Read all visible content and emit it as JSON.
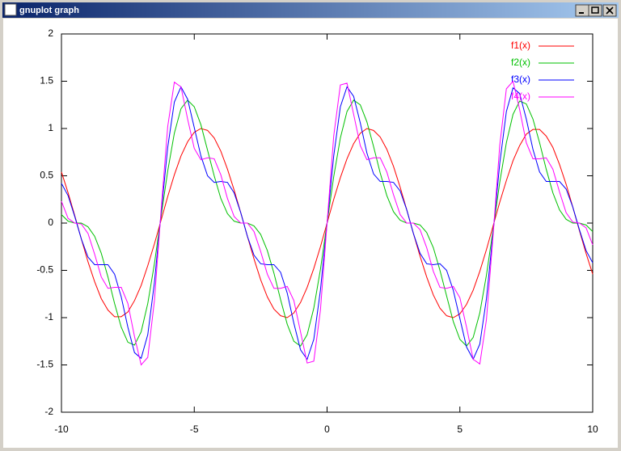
{
  "window": {
    "title": "gnuplot graph"
  },
  "chart_data": {
    "type": "line",
    "x": [
      -10,
      -9.75,
      -9.5,
      -9.25,
      -9,
      -8.75,
      -8.5,
      -8.25,
      -8,
      -7.75,
      -7.5,
      -7.25,
      -7,
      -6.75,
      -6.5,
      -6.25,
      -6,
      -5.75,
      -5.5,
      -5.25,
      -5,
      -4.75,
      -4.5,
      -4.25,
      -4,
      -3.75,
      -3.5,
      -3.25,
      -3,
      -2.75,
      -2.5,
      -2.25,
      -2,
      -1.75,
      -1.5,
      -1.25,
      -1,
      -0.75,
      -0.5,
      -0.25,
      0,
      0.25,
      0.5,
      0.75,
      1,
      1.25,
      1.5,
      1.75,
      2,
      2.25,
      2.5,
      2.75,
      3,
      3.25,
      3.5,
      3.75,
      4,
      4.25,
      4.5,
      4.75,
      5,
      5.25,
      5.5,
      5.75,
      6,
      6.25,
      6.5,
      6.75,
      7,
      7.25,
      7.5,
      7.75,
      8,
      8.25,
      8.5,
      8.75,
      9,
      9.25,
      9.5,
      9.75,
      10
    ],
    "series": [
      {
        "name": "f1(x)",
        "color": "#ff0000",
        "values": [
          0.54,
          0.32,
          0.08,
          -0.17,
          -0.41,
          -0.62,
          -0.8,
          -0.92,
          -0.99,
          -0.99,
          -0.94,
          -0.82,
          -0.66,
          -0.45,
          -0.22,
          0.03,
          0.28,
          0.51,
          0.71,
          0.86,
          0.96,
          1,
          0.98,
          0.9,
          0.76,
          0.57,
          0.35,
          0.11,
          -0.14,
          -0.38,
          -0.6,
          -0.78,
          -0.91,
          -0.98,
          -1,
          -0.95,
          -0.84,
          -0.68,
          -0.48,
          -0.25,
          0,
          0.25,
          0.48,
          0.68,
          0.84,
          0.95,
          1,
          0.98,
          0.91,
          0.78,
          0.6,
          0.38,
          0.14,
          -0.11,
          -0.35,
          -0.57,
          -0.76,
          -0.9,
          -0.98,
          -1,
          -0.96,
          -0.86,
          -0.71,
          -0.51,
          -0.28,
          -0.03,
          0.22,
          0.45,
          0.66,
          0.82,
          0.94,
          0.99,
          0.99,
          0.92,
          0.8,
          0.62,
          0.41,
          0.17,
          -0.08,
          -0.32,
          -0.54
        ]
      },
      {
        "name": "f2(x)",
        "color": "#00c000",
        "values": [
          0.09,
          0.02,
          0,
          0,
          -0.04,
          -0.14,
          -0.32,
          -0.57,
          -0.85,
          -1.1,
          -1.26,
          -1.29,
          -1.15,
          -0.85,
          -0.43,
          0.07,
          0.55,
          0.95,
          1.21,
          1.3,
          1.23,
          1.04,
          0.77,
          0.5,
          0.26,
          0.1,
          0.02,
          0,
          0,
          -0.03,
          -0.12,
          -0.29,
          -0.53,
          -0.81,
          -1.07,
          -1.25,
          -1.3,
          -1.18,
          -0.9,
          -0.49,
          0,
          0.49,
          0.9,
          1.18,
          1.3,
          1.25,
          1.07,
          0.81,
          0.53,
          0.29,
          0.12,
          0.03,
          0,
          0,
          -0.02,
          -0.1,
          -0.26,
          -0.5,
          -0.77,
          -1.04,
          -1.23,
          -1.3,
          -1.21,
          -0.95,
          -0.55,
          -0.07,
          0.43,
          0.85,
          1.15,
          1.29,
          1.26,
          1.1,
          0.85,
          0.57,
          0.32,
          0.14,
          0.04,
          0,
          0,
          -0.02,
          -0.09
        ]
      },
      {
        "name": "f3(x)",
        "color": "#0000ff",
        "values": [
          0.42,
          0.29,
          0.07,
          -0.17,
          -0.36,
          -0.44,
          -0.44,
          -0.44,
          -0.54,
          -0.78,
          -1.1,
          -1.37,
          -1.43,
          -1.18,
          -0.63,
          0.1,
          0.8,
          1.28,
          1.44,
          1.31,
          1.01,
          0.71,
          0.5,
          0.43,
          0.44,
          0.43,
          0.32,
          0.11,
          -0.14,
          -0.34,
          -0.43,
          -0.44,
          -0.44,
          -0.52,
          -0.74,
          -1.06,
          -1.34,
          -1.44,
          -1.23,
          -0.71,
          0,
          0.71,
          1.23,
          1.44,
          1.34,
          1.06,
          0.74,
          0.52,
          0.44,
          0.44,
          0.43,
          0.34,
          0.14,
          -0.11,
          -0.32,
          -0.43,
          -0.44,
          -0.43,
          -0.5,
          -0.71,
          -1.01,
          -1.31,
          -1.44,
          -1.28,
          -0.8,
          -0.1,
          0.63,
          1.18,
          1.43,
          1.37,
          1.1,
          0.78,
          0.54,
          0.44,
          0.44,
          0.44,
          0.36,
          0.17,
          -0.07,
          -0.29,
          -0.42
        ]
      },
      {
        "name": "f4(x)",
        "color": "#ff00ff",
        "values": [
          0.23,
          0.05,
          0,
          -0.01,
          -0.11,
          -0.33,
          -0.57,
          -0.69,
          -0.68,
          -0.68,
          -0.85,
          -1.2,
          -1.5,
          -1.42,
          -0.82,
          0.13,
          1.02,
          1.49,
          1.44,
          1.1,
          0.79,
          0.67,
          0.69,
          0.68,
          0.51,
          0.26,
          0.07,
          0,
          0,
          -0.09,
          -0.3,
          -0.54,
          -0.69,
          -0.69,
          -0.67,
          -0.82,
          -1.15,
          -1.48,
          -1.46,
          -0.92,
          0,
          0.92,
          1.46,
          1.48,
          1.15,
          0.82,
          0.67,
          0.69,
          0.69,
          0.54,
          0.3,
          0.09,
          0,
          0,
          -0.07,
          -0.26,
          -0.51,
          -0.68,
          -0.69,
          -0.67,
          -0.79,
          -1.1,
          -1.44,
          -1.49,
          -1.02,
          -0.13,
          0.82,
          1.42,
          1.5,
          1.2,
          0.85,
          0.68,
          0.68,
          0.69,
          0.57,
          0.33,
          0.11,
          0.01,
          0,
          -0.05,
          -0.23
        ]
      }
    ],
    "xlim": [
      -10,
      10
    ],
    "xticks": [
      -10,
      -5,
      0,
      5,
      10
    ],
    "ylim": [
      -2,
      2
    ],
    "yticks": [
      -2,
      -1.5,
      -1,
      -0.5,
      0,
      0.5,
      1,
      1.5,
      2
    ],
    "grid": false,
    "legend": "top-right"
  }
}
